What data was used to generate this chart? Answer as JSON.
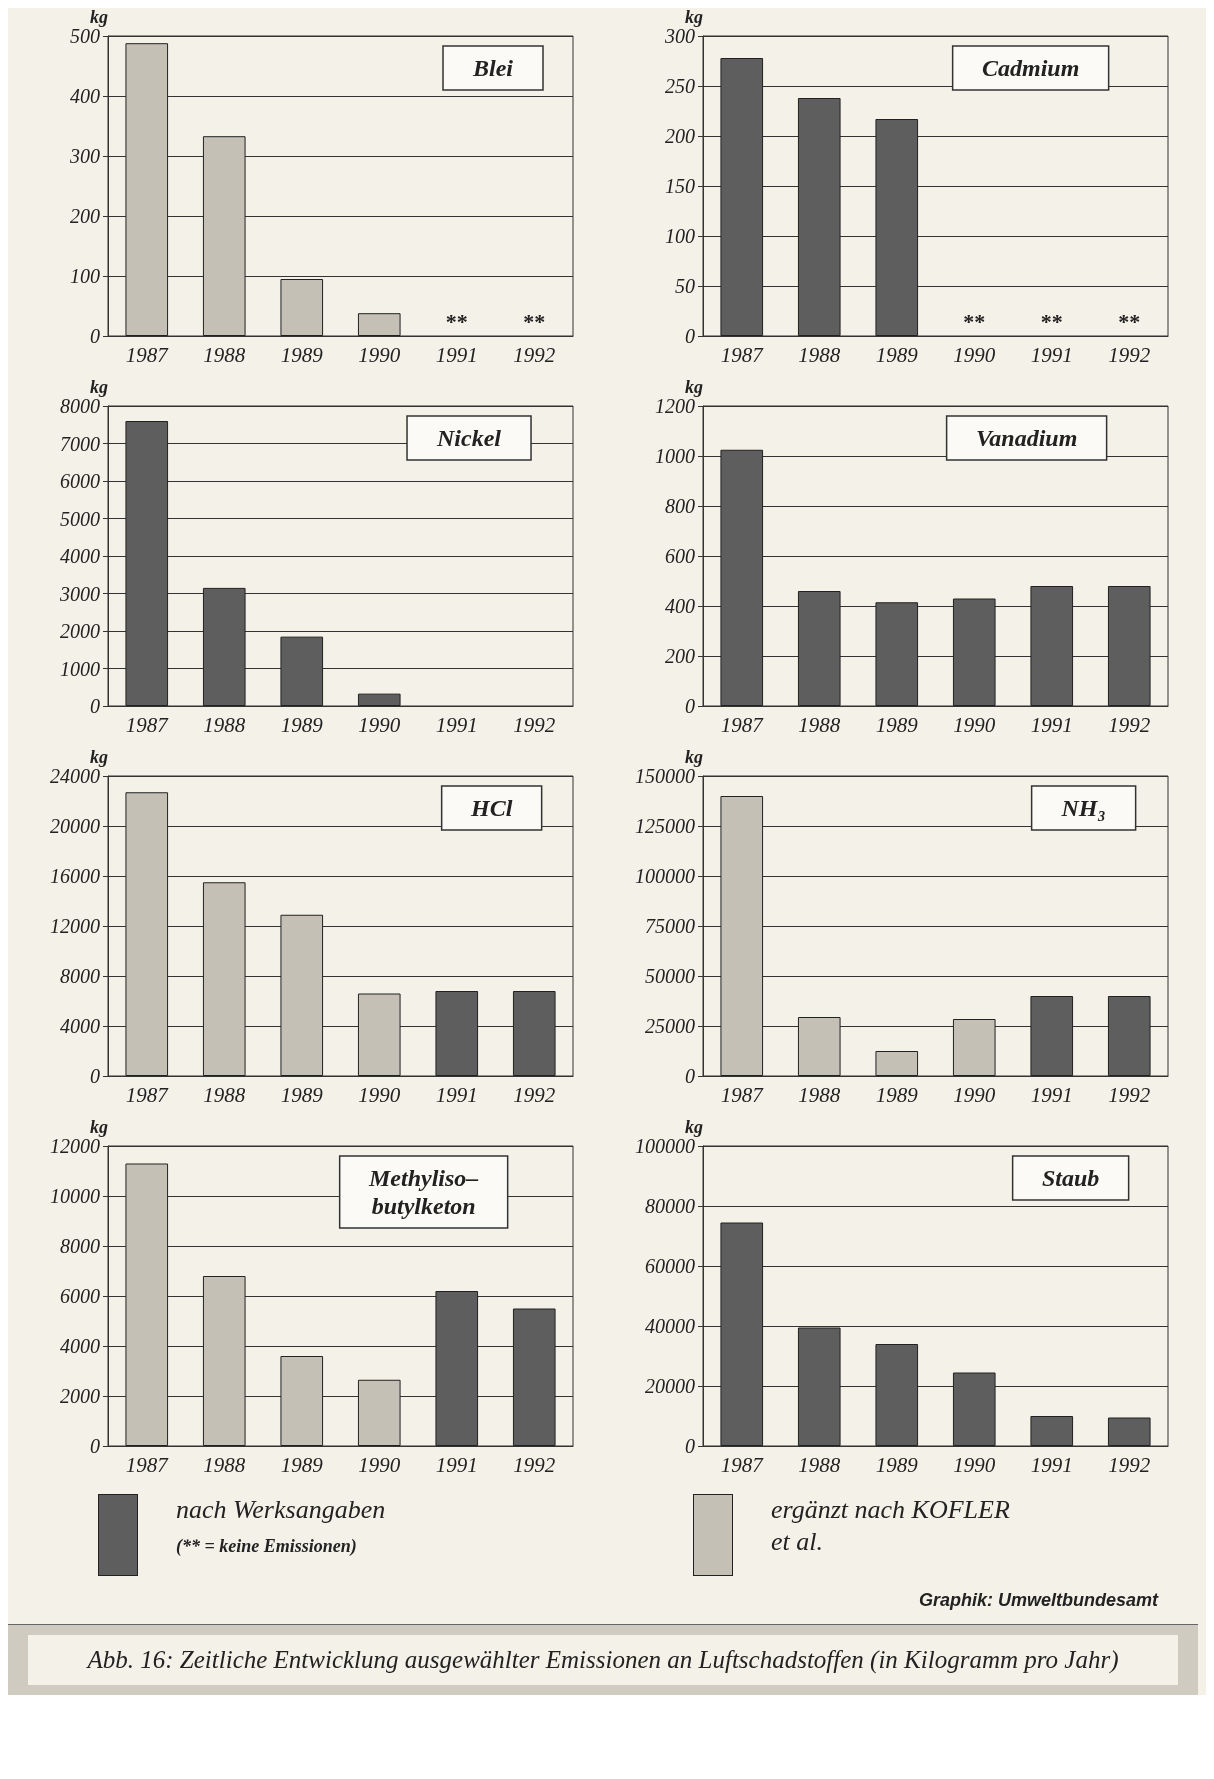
{
  "chart_data": [
    {
      "type": "bar",
      "title": "Blei",
      "ylabel": "kg",
      "categories": [
        "1987",
        "1988",
        "1989",
        "1990",
        "1991",
        "1992"
      ],
      "values": [
        488,
        333,
        95,
        38,
        null,
        null
      ],
      "colors": [
        "#c4c0b6",
        "#c4c0b6",
        "#c4c0b6",
        "#c4c0b6",
        "#c4c0b6",
        "#c4c0b6"
      ],
      "ylim": [
        0,
        500
      ],
      "yticks": [
        0,
        100,
        200,
        300,
        400,
        500
      ],
      "grid": "y",
      "annotations": [
        "**",
        "**"
      ]
    },
    {
      "type": "bar",
      "title": "Cadmium",
      "ylabel": "kg",
      "categories": [
        "1987",
        "1988",
        "1989",
        "1990",
        "1991",
        "1992"
      ],
      "values": [
        278,
        238,
        217,
        null,
        null,
        null
      ],
      "colors": [
        "#5e5e5e",
        "#5e5e5e",
        "#5e5e5e",
        "#5e5e5e",
        "#5e5e5e",
        "#5e5e5e"
      ],
      "ylim": [
        0,
        300
      ],
      "yticks": [
        0,
        50,
        100,
        150,
        200,
        250,
        300
      ],
      "grid": "y",
      "annotations": [
        "**",
        "**",
        "**"
      ]
    },
    {
      "type": "bar",
      "title": "Nickel",
      "ylabel": "kg",
      "categories": [
        "1987",
        "1988",
        "1989",
        "1990",
        "1991",
        "1992"
      ],
      "values": [
        7600,
        3150,
        1850,
        330,
        null,
        null
      ],
      "colors": [
        "#5e5e5e",
        "#5e5e5e",
        "#5e5e5e",
        "#5e5e5e",
        "#5e5e5e",
        "#5e5e5e"
      ],
      "ylim": [
        0,
        8000
      ],
      "yticks": [
        0,
        1000,
        2000,
        3000,
        4000,
        5000,
        6000,
        7000,
        8000
      ],
      "grid": "y"
    },
    {
      "type": "bar",
      "title": "Vanadium",
      "ylabel": "kg",
      "categories": [
        "1987",
        "1988",
        "1989",
        "1990",
        "1991",
        "1992"
      ],
      "values": [
        1025,
        460,
        415,
        430,
        480,
        480
      ],
      "colors": [
        "#5e5e5e",
        "#5e5e5e",
        "#5e5e5e",
        "#5e5e5e",
        "#5e5e5e",
        "#5e5e5e"
      ],
      "ylim": [
        0,
        1200
      ],
      "yticks": [
        0,
        200,
        400,
        600,
        800,
        1000,
        1200
      ],
      "grid": "y"
    },
    {
      "type": "bar",
      "title": "HCl",
      "ylabel": "kg",
      "categories": [
        "1987",
        "1988",
        "1989",
        "1990",
        "1991",
        "1992"
      ],
      "values": [
        22700,
        15500,
        12900,
        6600,
        6800,
        6800
      ],
      "colors": [
        "#c4c0b6",
        "#c4c0b6",
        "#c4c0b6",
        "#c4c0b6",
        "#5e5e5e",
        "#5e5e5e"
      ],
      "ylim": [
        0,
        24000
      ],
      "yticks": [
        0,
        4000,
        8000,
        12000,
        16000,
        20000,
        24000
      ],
      "grid": "y"
    },
    {
      "type": "bar",
      "title": "NH₃",
      "ylabel": "kg",
      "categories": [
        "1987",
        "1988",
        "1989",
        "1990",
        "1991",
        "1992"
      ],
      "values": [
        140000,
        29500,
        12500,
        28500,
        40000,
        40000
      ],
      "colors": [
        "#c4c0b6",
        "#c4c0b6",
        "#c4c0b6",
        "#c4c0b6",
        "#5e5e5e",
        "#5e5e5e"
      ],
      "ylim": [
        0,
        150000
      ],
      "yticks": [
        0,
        25000,
        50000,
        75000,
        100000,
        125000,
        150000
      ],
      "grid": "y"
    },
    {
      "type": "bar",
      "title": "Methyliso–\nbutylketon",
      "ylabel": "kg",
      "categories": [
        "1987",
        "1988",
        "1989",
        "1990",
        "1991",
        "1992"
      ],
      "values": [
        11300,
        6800,
        3600,
        2650,
        6200,
        5500
      ],
      "colors": [
        "#c4c0b6",
        "#c4c0b6",
        "#c4c0b6",
        "#c4c0b6",
        "#5e5e5e",
        "#5e5e5e"
      ],
      "ylim": [
        0,
        12000
      ],
      "yticks": [
        0,
        2000,
        4000,
        6000,
        8000,
        10000,
        12000
      ],
      "grid": "y"
    },
    {
      "type": "bar",
      "title": "Staub",
      "ylabel": "kg",
      "categories": [
        "1987",
        "1988",
        "1989",
        "1990",
        "1991",
        "1992"
      ],
      "values": [
        74500,
        39500,
        34000,
        24500,
        10000,
        9500
      ],
      "colors": [
        "#5e5e5e",
        "#5e5e5e",
        "#5e5e5e",
        "#5e5e5e",
        "#5e5e5e",
        "#5e5e5e"
      ],
      "ylim": [
        0,
        100000
      ],
      "yticks": [
        0,
        20000,
        40000,
        60000,
        80000,
        100000
      ],
      "grid": "y"
    },
    {
      "type": "other",
      "title": "Abb. 16:  Zeitliche Entwicklung ausgewählter Emissionen an Luftschadstoffen (in Kilogramm pro Jahr)",
      "categories": [
        "nach Werksangaben",
        "ergänzt nach KOFLER et al."
      ],
      "colors": [
        "#5e5e5e",
        "#c4c0b6"
      ],
      "annotations": [
        "(** = keine Emissionen)",
        "Graphik: Umweltbundesamt"
      ]
    }
  ]
}
